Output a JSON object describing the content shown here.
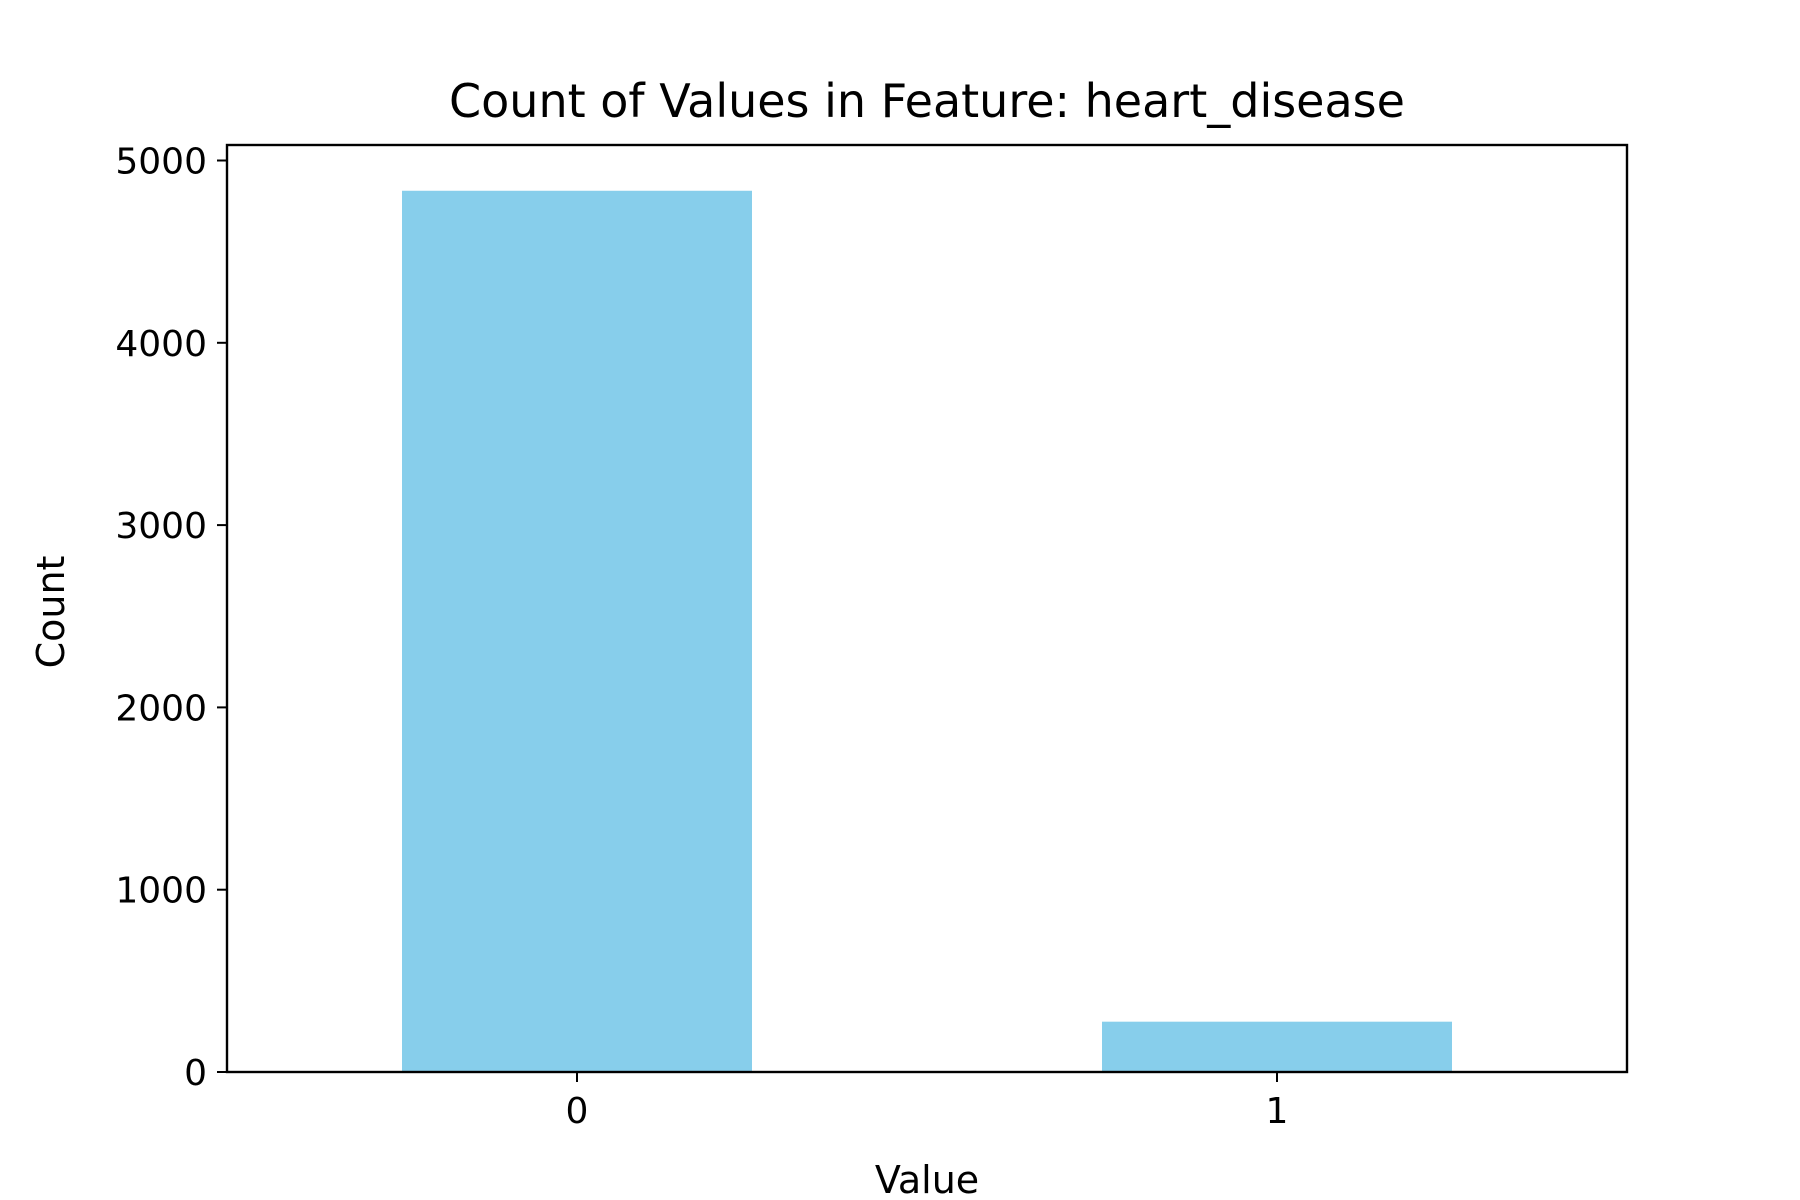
{
  "chart_data": {
    "type": "bar",
    "title": "Count of Values in Feature: heart_disease",
    "xlabel": "Value",
    "ylabel": "Count",
    "categories": [
      "0",
      "1"
    ],
    "values": [
      4834,
      276
    ],
    "ylim": [
      0,
      5085
    ],
    "yticks": [
      0,
      1000,
      2000,
      3000,
      4000,
      5000
    ],
    "grid": false,
    "legend": "none",
    "bar_color": "#87CEEB"
  }
}
